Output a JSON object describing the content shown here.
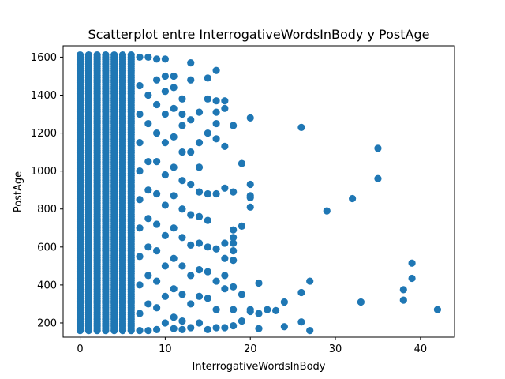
{
  "chart_data": {
    "type": "scatter",
    "title": "Scatterplot entre InterrogativeWordsInBody y PostAge",
    "xlabel": "InterrogativeWordsInBody",
    "ylabel": "PostAge",
    "xlim": [
      -2,
      44
    ],
    "ylim": [
      125,
      1660
    ],
    "xticks": [
      0,
      10,
      20,
      30,
      40
    ],
    "yticks": [
      200,
      400,
      600,
      800,
      1000,
      1200,
      1400,
      1600
    ],
    "marker_color": "#1f77b4",
    "grid": false,
    "dense_columns": {
      "x": [
        0,
        1,
        2,
        3,
        4,
        5,
        6
      ],
      "y_range": [
        160,
        1615
      ]
    },
    "points": [
      {
        "x": 7,
        "y": 1600
      },
      {
        "x": 7,
        "y": 1450
      },
      {
        "x": 7,
        "y": 1300
      },
      {
        "x": 7,
        "y": 1150
      },
      {
        "x": 7,
        "y": 1000
      },
      {
        "x": 7,
        "y": 850
      },
      {
        "x": 7,
        "y": 700
      },
      {
        "x": 7,
        "y": 550
      },
      {
        "x": 7,
        "y": 400
      },
      {
        "x": 7,
        "y": 250
      },
      {
        "x": 7,
        "y": 160
      },
      {
        "x": 8,
        "y": 1600
      },
      {
        "x": 8,
        "y": 1400
      },
      {
        "x": 8,
        "y": 1250
      },
      {
        "x": 8,
        "y": 1050
      },
      {
        "x": 8,
        "y": 900
      },
      {
        "x": 8,
        "y": 750
      },
      {
        "x": 8,
        "y": 600
      },
      {
        "x": 8,
        "y": 450
      },
      {
        "x": 8,
        "y": 300
      },
      {
        "x": 8,
        "y": 160
      },
      {
        "x": 9,
        "y": 1590
      },
      {
        "x": 9,
        "y": 1480
      },
      {
        "x": 9,
        "y": 1350
      },
      {
        "x": 9,
        "y": 1200
      },
      {
        "x": 9,
        "y": 1050
      },
      {
        "x": 9,
        "y": 880
      },
      {
        "x": 9,
        "y": 720
      },
      {
        "x": 9,
        "y": 580
      },
      {
        "x": 9,
        "y": 420
      },
      {
        "x": 9,
        "y": 280
      },
      {
        "x": 9,
        "y": 165
      },
      {
        "x": 10,
        "y": 1590
      },
      {
        "x": 10,
        "y": 1500
      },
      {
        "x": 10,
        "y": 1420
      },
      {
        "x": 10,
        "y": 1300
      },
      {
        "x": 10,
        "y": 1150
      },
      {
        "x": 10,
        "y": 980
      },
      {
        "x": 10,
        "y": 820
      },
      {
        "x": 10,
        "y": 660
      },
      {
        "x": 10,
        "y": 500
      },
      {
        "x": 10,
        "y": 340
      },
      {
        "x": 10,
        "y": 200
      },
      {
        "x": 11,
        "y": 1500
      },
      {
        "x": 11,
        "y": 1440
      },
      {
        "x": 11,
        "y": 1330
      },
      {
        "x": 11,
        "y": 1180
      },
      {
        "x": 11,
        "y": 1020
      },
      {
        "x": 11,
        "y": 870
      },
      {
        "x": 11,
        "y": 700
      },
      {
        "x": 11,
        "y": 540
      },
      {
        "x": 11,
        "y": 380
      },
      {
        "x": 11,
        "y": 230
      },
      {
        "x": 11,
        "y": 170
      },
      {
        "x": 12,
        "y": 1380
      },
      {
        "x": 12,
        "y": 1300
      },
      {
        "x": 12,
        "y": 1240
      },
      {
        "x": 12,
        "y": 1100
      },
      {
        "x": 12,
        "y": 950
      },
      {
        "x": 12,
        "y": 800
      },
      {
        "x": 12,
        "y": 650
      },
      {
        "x": 12,
        "y": 500
      },
      {
        "x": 12,
        "y": 350
      },
      {
        "x": 12,
        "y": 210
      },
      {
        "x": 12,
        "y": 165
      },
      {
        "x": 13,
        "y": 1570
      },
      {
        "x": 13,
        "y": 1480
      },
      {
        "x": 13,
        "y": 1270
      },
      {
        "x": 13,
        "y": 1100
      },
      {
        "x": 13,
        "y": 930
      },
      {
        "x": 13,
        "y": 770
      },
      {
        "x": 13,
        "y": 610
      },
      {
        "x": 13,
        "y": 450
      },
      {
        "x": 13,
        "y": 300
      },
      {
        "x": 13,
        "y": 175
      },
      {
        "x": 14,
        "y": 1310
      },
      {
        "x": 14,
        "y": 1150
      },
      {
        "x": 14,
        "y": 1020
      },
      {
        "x": 14,
        "y": 890
      },
      {
        "x": 14,
        "y": 760
      },
      {
        "x": 14,
        "y": 620
      },
      {
        "x": 14,
        "y": 480
      },
      {
        "x": 14,
        "y": 340
      },
      {
        "x": 14,
        "y": 200
      },
      {
        "x": 15,
        "y": 1490
      },
      {
        "x": 15,
        "y": 1380
      },
      {
        "x": 15,
        "y": 1200
      },
      {
        "x": 15,
        "y": 880
      },
      {
        "x": 15,
        "y": 740
      },
      {
        "x": 15,
        "y": 600
      },
      {
        "x": 15,
        "y": 470
      },
      {
        "x": 15,
        "y": 330
      },
      {
        "x": 15,
        "y": 165
      },
      {
        "x": 16,
        "y": 1530
      },
      {
        "x": 16,
        "y": 1370
      },
      {
        "x": 16,
        "y": 1310
      },
      {
        "x": 16,
        "y": 1250
      },
      {
        "x": 16,
        "y": 1170
      },
      {
        "x": 16,
        "y": 880
      },
      {
        "x": 16,
        "y": 590
      },
      {
        "x": 16,
        "y": 420
      },
      {
        "x": 16,
        "y": 270
      },
      {
        "x": 16,
        "y": 175
      },
      {
        "x": 17,
        "y": 1370
      },
      {
        "x": 17,
        "y": 1330
      },
      {
        "x": 17,
        "y": 1130
      },
      {
        "x": 17,
        "y": 910
      },
      {
        "x": 17,
        "y": 620
      },
      {
        "x": 17,
        "y": 540
      },
      {
        "x": 17,
        "y": 450
      },
      {
        "x": 17,
        "y": 380
      },
      {
        "x": 17,
        "y": 175
      },
      {
        "x": 18,
        "y": 1240
      },
      {
        "x": 18,
        "y": 890
      },
      {
        "x": 18,
        "y": 690
      },
      {
        "x": 18,
        "y": 650
      },
      {
        "x": 18,
        "y": 620
      },
      {
        "x": 18,
        "y": 580
      },
      {
        "x": 18,
        "y": 530
      },
      {
        "x": 18,
        "y": 390
      },
      {
        "x": 18,
        "y": 270
      },
      {
        "x": 18,
        "y": 185
      },
      {
        "x": 19,
        "y": 1040
      },
      {
        "x": 19,
        "y": 710
      },
      {
        "x": 19,
        "y": 350
      },
      {
        "x": 19,
        "y": 210
      },
      {
        "x": 20,
        "y": 1280
      },
      {
        "x": 20,
        "y": 930
      },
      {
        "x": 20,
        "y": 870
      },
      {
        "x": 20,
        "y": 860
      },
      {
        "x": 20,
        "y": 810
      },
      {
        "x": 20,
        "y": 270
      },
      {
        "x": 20,
        "y": 260
      },
      {
        "x": 21,
        "y": 410
      },
      {
        "x": 21,
        "y": 250
      },
      {
        "x": 21,
        "y": 170
      },
      {
        "x": 22,
        "y": 270
      },
      {
        "x": 23,
        "y": 265
      },
      {
        "x": 24,
        "y": 310
      },
      {
        "x": 24,
        "y": 180
      },
      {
        "x": 26,
        "y": 1230
      },
      {
        "x": 26,
        "y": 360
      },
      {
        "x": 26,
        "y": 205
      },
      {
        "x": 27,
        "y": 420
      },
      {
        "x": 27,
        "y": 160
      },
      {
        "x": 29,
        "y": 790
      },
      {
        "x": 32,
        "y": 855
      },
      {
        "x": 33,
        "y": 310
      },
      {
        "x": 35,
        "y": 1120
      },
      {
        "x": 35,
        "y": 960
      },
      {
        "x": 38,
        "y": 375
      },
      {
        "x": 38,
        "y": 320
      },
      {
        "x": 39,
        "y": 515
      },
      {
        "x": 39,
        "y": 435
      },
      {
        "x": 42,
        "y": 270
      }
    ]
  }
}
